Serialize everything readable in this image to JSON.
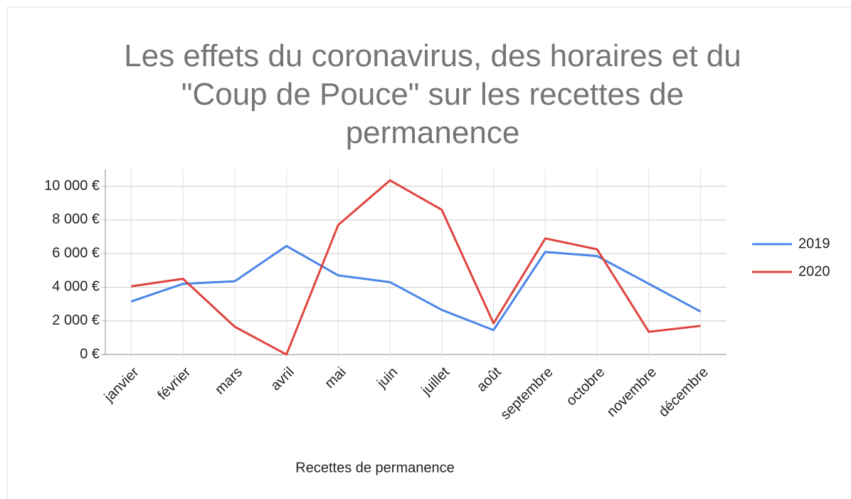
{
  "chart_data": {
    "type": "line",
    "title": "Les effets du coronavirus, des horaires et du \"Coup de Pouce\" sur les recettes de permanence",
    "x_label": "Recettes de permanence",
    "categories": [
      "janvier",
      "février",
      "mars",
      "avril",
      "mai",
      "juin",
      "juillet",
      "août",
      "septembre",
      "octobre",
      "novembre",
      "décembre"
    ],
    "series": [
      {
        "name": "2019",
        "color": "#4a86e8",
        "values": [
          3150,
          4200,
          4350,
          6450,
          4700,
          4300,
          2650,
          1450,
          6100,
          5850,
          4200,
          2550
        ]
      },
      {
        "name": "2020",
        "color": "#e0443e",
        "values": [
          4050,
          4500,
          1650,
          0,
          7700,
          10350,
          8600,
          1850,
          6900,
          6250,
          1350,
          1700
        ]
      }
    ],
    "ylim": [
      0,
      11000
    ],
    "yticks": [
      {
        "value": 0,
        "label": "0 €"
      },
      {
        "value": 2000,
        "label": "2 000 €"
      },
      {
        "value": 4000,
        "label": "4 000 €"
      },
      {
        "value": 6000,
        "label": "6 000 €"
      },
      {
        "value": 8000,
        "label": "8 000 €"
      },
      {
        "value": 10000,
        "label": "10 000 €"
      }
    ],
    "grid": true,
    "legend": "right"
  }
}
